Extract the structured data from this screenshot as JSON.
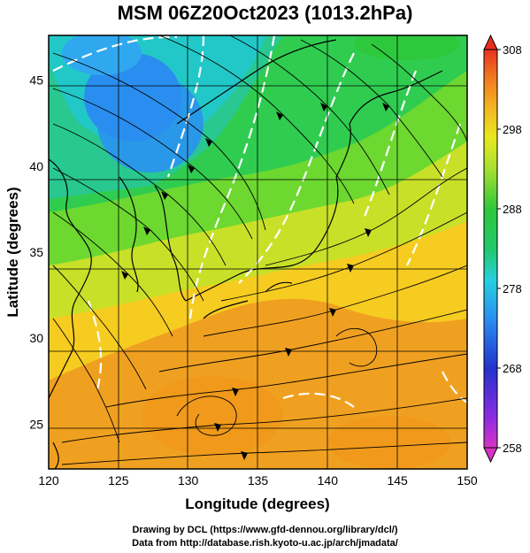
{
  "title": "MSM 06Z20Oct2023 (1013.2hPa)",
  "axes": {
    "xlabel": "Longitude (degrees)",
    "ylabel": "Latitude  (degrees)",
    "x_ticks": [
      "120",
      "125",
      "130",
      "135",
      "140",
      "145",
      "150"
    ],
    "y_ticks": [
      "25",
      "30",
      "35",
      "40",
      "45"
    ],
    "x_range": [
      120,
      150
    ],
    "y_range": [
      22.4,
      47.6
    ]
  },
  "colorbar": {
    "labels": [
      "308",
      "298",
      "288",
      "278",
      "268",
      "258"
    ],
    "range": [
      258,
      308
    ],
    "colors": [
      "#d633c4",
      "#8a2be2",
      "#2233cc",
      "#2a8cf0",
      "#24d0e0",
      "#22c86a",
      "#2ec83c",
      "#a8e030",
      "#e8e820",
      "#f4b020",
      "#f07020",
      "#e83020"
    ]
  },
  "footer": {
    "line1": "Drawing by DCL (https://www.gfd-dennou.org/library/dcl/)",
    "line2": "Data from http://database.rish.kyoto-u.ac.jp/arch/jmadata/"
  }
}
